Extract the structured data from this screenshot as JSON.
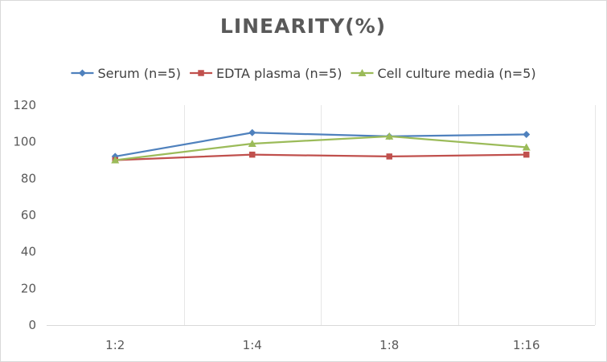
{
  "chart_data": {
    "type": "line",
    "title": "LINEARITY(%)",
    "xlabel": "",
    "ylabel": "",
    "categories": [
      "1:2",
      "1:4",
      "1:8",
      "1:16"
    ],
    "ylim": [
      0,
      120
    ],
    "yticks": [
      0,
      20,
      40,
      60,
      80,
      100,
      120
    ],
    "grid": "vertical",
    "legend_position": "top",
    "series": [
      {
        "name": "Serum (n=5)",
        "values": [
          92,
          105,
          103,
          104
        ],
        "color": "#4f81bd",
        "marker": "diamond"
      },
      {
        "name": "EDTA plasma (n=5)",
        "values": [
          90,
          93,
          92,
          93
        ],
        "color": "#c0504d",
        "marker": "square"
      },
      {
        "name": "Cell culture media (n=5)",
        "values": [
          90,
          99,
          103,
          97
        ],
        "color": "#9bbb59",
        "marker": "triangle"
      }
    ]
  }
}
